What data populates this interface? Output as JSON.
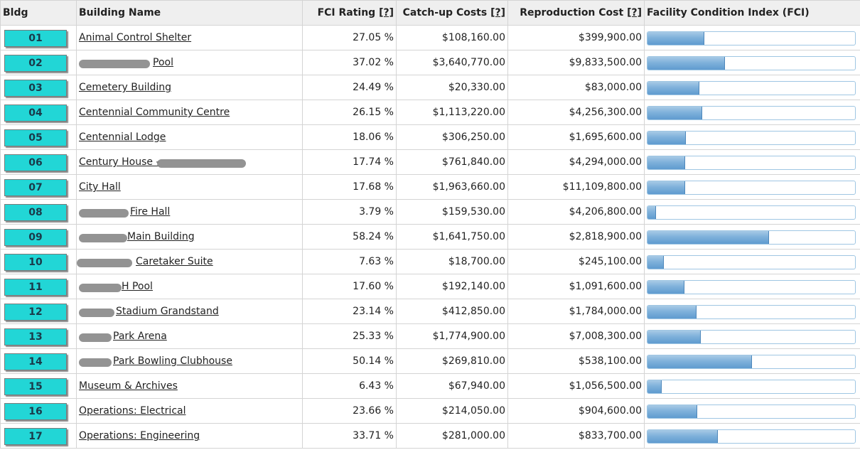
{
  "table": {
    "headers": {
      "bldg": "Bldg",
      "name": "Building Name",
      "fci_rating": "FCI Rating",
      "catchup": "Catch-up Costs",
      "reproduction": "Reproduction Cost",
      "fci_index": "Facility Condition Index (FCI)",
      "help": "[?]"
    },
    "rows": [
      {
        "bldg": "01",
        "name": "Animal Control Shelter",
        "fci": "27.05 %",
        "fci_value": 27.05,
        "catchup": "$108,160.00",
        "reproduction": "$399,900.00"
      },
      {
        "bldg": "02",
        "name": "Pool",
        "fci": "37.02 %",
        "fci_value": 37.02,
        "catchup": "$3,640,770.00",
        "reproduction": "$9,833,500.00"
      },
      {
        "bldg": "03",
        "name": "Cemetery Building",
        "fci": "24.49 %",
        "fci_value": 24.49,
        "catchup": "$20,330.00",
        "reproduction": "$83,000.00"
      },
      {
        "bldg": "04",
        "name": "Centennial Community Centre",
        "fci": "26.15 %",
        "fci_value": 26.15,
        "catchup": "$1,113,220.00",
        "reproduction": "$4,256,300.00"
      },
      {
        "bldg": "05",
        "name": "Centennial Lodge",
        "fci": "18.06 %",
        "fci_value": 18.06,
        "catchup": "$306,250.00",
        "reproduction": "$1,695,600.00"
      },
      {
        "bldg": "06",
        "name": "Century House - ",
        "fci": "17.74 %",
        "fci_value": 17.74,
        "catchup": "$761,840.00",
        "reproduction": "$4,294,000.00"
      },
      {
        "bldg": "07",
        "name": "City Hall",
        "fci": "17.68 %",
        "fci_value": 17.68,
        "catchup": "$1,963,660.00",
        "reproduction": "$11,109,800.00"
      },
      {
        "bldg": "08",
        "name": "Fire Hall",
        "fci": "3.79 %",
        "fci_value": 3.79,
        "catchup": "$159,530.00",
        "reproduction": "$4,206,800.00"
      },
      {
        "bldg": "09",
        "name": "Main Building",
        "fci": "58.24 %",
        "fci_value": 58.24,
        "catchup": "$1,641,750.00",
        "reproduction": "$2,818,900.00"
      },
      {
        "bldg": "10",
        "name": "Caretaker Suite",
        "fci": "7.63 %",
        "fci_value": 7.63,
        "catchup": "$18,700.00",
        "reproduction": "$245,100.00"
      },
      {
        "bldg": "11",
        "name": "H Pool",
        "fci": "17.60 %",
        "fci_value": 17.6,
        "catchup": "$192,140.00",
        "reproduction": "$1,091,600.00"
      },
      {
        "bldg": "12",
        "name": "Stadium Grandstand",
        "fci": "23.14 %",
        "fci_value": 23.14,
        "catchup": "$412,850.00",
        "reproduction": "$1,784,000.00"
      },
      {
        "bldg": "13",
        "name": "Park Arena",
        "fci": "25.33 %",
        "fci_value": 25.33,
        "catchup": "$1,774,900.00",
        "reproduction": "$7,008,300.00"
      },
      {
        "bldg": "14",
        "name": "Park Bowling Clubhouse",
        "fci": "50.14 %",
        "fci_value": 50.14,
        "catchup": "$269,810.00",
        "reproduction": "$538,100.00"
      },
      {
        "bldg": "15",
        "name": "Museum & Archives",
        "fci": "6.43 %",
        "fci_value": 6.43,
        "catchup": "$67,940.00",
        "reproduction": "$1,056,500.00"
      },
      {
        "bldg": "16",
        "name": "Operations: Electrical",
        "fci": "23.66 %",
        "fci_value": 23.66,
        "catchup": "$214,050.00",
        "reproduction": "$904,600.00"
      },
      {
        "bldg": "17",
        "name": "Operations: Engineering",
        "fci": "33.71 %",
        "fci_value": 33.71,
        "catchup": "$281,000.00",
        "reproduction": "$833,700.00"
      }
    ]
  },
  "colors": {
    "bldg_button": "#22d6d6",
    "bar_fill": "#7fb1db",
    "bar_border": "#9fc6e3",
    "header_bg": "#efefef"
  }
}
